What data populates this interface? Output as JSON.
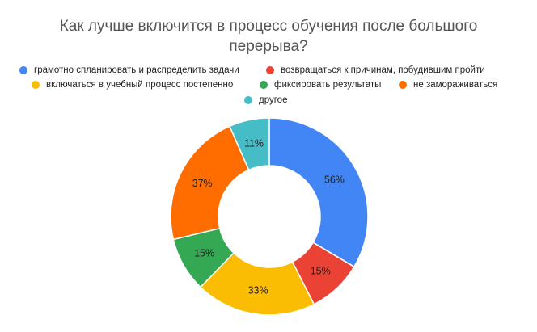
{
  "chart_data": {
    "type": "pie",
    "donut": true,
    "title": "Как лучше включится в процесс обучения после большого перерыва?",
    "legend_position": "top",
    "categories": [
      "грамотно спланировать и распределить задачи",
      "возвращаться к причинам, побудившим пройти",
      "включаться в учебный процесс постепенно",
      "фиксировать результаты",
      "не замораживаться",
      "другое"
    ],
    "colors": [
      "#4285F4",
      "#EA4335",
      "#FBBC04",
      "#34A853",
      "#FF6D01",
      "#46BDC6"
    ],
    "slice_order": [
      0,
      1,
      2,
      3,
      4,
      5
    ],
    "values": [
      56,
      15,
      33,
      15,
      37,
      11
    ],
    "data_labels": [
      "56%",
      "15%",
      "33%",
      "15%",
      "37%",
      "11%"
    ]
  }
}
